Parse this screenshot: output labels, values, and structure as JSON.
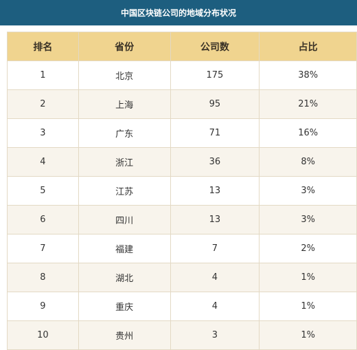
{
  "title": "中国区块链公司的地域分布状况",
  "colors": {
    "title_bg": "#1d5e7f",
    "header_bg": "#f0d48f",
    "stripe_bg": "#f8f4ec",
    "border": "#e3d9c4"
  },
  "chart_data": {
    "type": "table",
    "title": "中国区块链公司的地域分布状况",
    "columns": [
      "排名",
      "省份",
      "公司数",
      "占比"
    ],
    "rows": [
      [
        "1",
        "北京",
        "175",
        "38%"
      ],
      [
        "2",
        "上海",
        "95",
        "21%"
      ],
      [
        "3",
        "广东",
        "71",
        "16%"
      ],
      [
        "4",
        "浙江",
        "36",
        "8%"
      ],
      [
        "5",
        "江苏",
        "13",
        "3%"
      ],
      [
        "6",
        "四川",
        "13",
        "3%"
      ],
      [
        "7",
        "福建",
        "7",
        "2%"
      ],
      [
        "8",
        "湖北",
        "4",
        "1%"
      ],
      [
        "9",
        "重庆",
        "4",
        "1%"
      ],
      [
        "10",
        "贵州",
        "3",
        "1%"
      ]
    ]
  }
}
